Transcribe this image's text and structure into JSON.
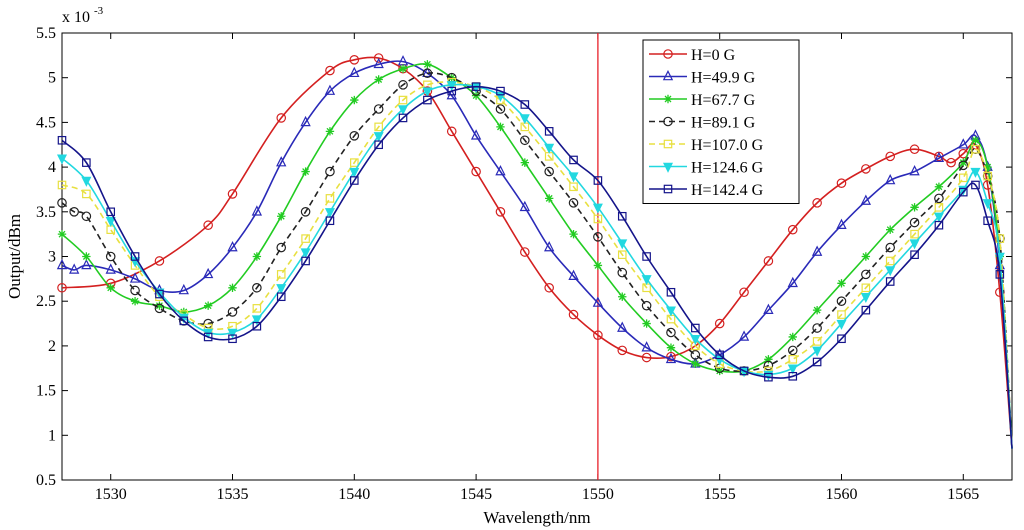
{
  "chart_data": {
    "type": "line",
    "title": "",
    "xlabel": "Wavelength/nm",
    "ylabel": "Output/dBm",
    "y_multiplier_label": "x 10",
    "y_multiplier_exp": "-3",
    "xlim": [
      1528,
      1567
    ],
    "ylim": [
      0.5,
      5.5
    ],
    "xticks": [
      1530,
      1535,
      1540,
      1545,
      1550,
      1555,
      1560,
      1565
    ],
    "yticks": [
      0.5,
      1,
      1.5,
      2,
      2.5,
      3,
      3.5,
      4,
      4.5,
      5,
      5.5
    ],
    "grid": false,
    "legend_position": "top-right",
    "vertical_marker": {
      "x": 1550,
      "color": "#e8202a"
    },
    "series": [
      {
        "name": "H=0 G",
        "color": "#d42020",
        "marker": "circle",
        "dash": "solid",
        "points": [
          [
            1528,
            2.65
          ],
          [
            1530,
            2.7
          ],
          [
            1532,
            2.95
          ],
          [
            1534,
            3.35
          ],
          [
            1535,
            3.7
          ],
          [
            1537,
            4.55
          ],
          [
            1539,
            5.08
          ],
          [
            1540,
            5.2
          ],
          [
            1541,
            5.22
          ],
          [
            1542,
            5.1
          ],
          [
            1543,
            4.85
          ],
          [
            1544,
            4.4
          ],
          [
            1545,
            3.95
          ],
          [
            1546,
            3.5
          ],
          [
            1547,
            3.05
          ],
          [
            1548,
            2.65
          ],
          [
            1549,
            2.35
          ],
          [
            1550,
            2.12
          ],
          [
            1551,
            1.95
          ],
          [
            1552,
            1.87
          ],
          [
            1553,
            1.88
          ],
          [
            1554,
            2.0
          ],
          [
            1555,
            2.25
          ],
          [
            1556,
            2.6
          ],
          [
            1557,
            2.95
          ],
          [
            1558,
            3.3
          ],
          [
            1559,
            3.6
          ],
          [
            1560,
            3.82
          ],
          [
            1561,
            3.98
          ],
          [
            1562,
            4.12
          ],
          [
            1563,
            4.2
          ],
          [
            1564,
            4.12
          ],
          [
            1564.5,
            4.05
          ],
          [
            1565,
            4.15
          ],
          [
            1565.5,
            4.25
          ],
          [
            1566,
            3.8
          ],
          [
            1566.5,
            2.6
          ],
          [
            1567,
            0.85
          ]
        ]
      },
      {
        "name": "H=49.9 G",
        "color": "#2a2ab8",
        "marker": "triangle",
        "dash": "solid",
        "points": [
          [
            1528,
            2.9
          ],
          [
            1528.5,
            2.85
          ],
          [
            1529,
            2.9
          ],
          [
            1530,
            2.85
          ],
          [
            1531,
            2.75
          ],
          [
            1532,
            2.62
          ],
          [
            1533,
            2.62
          ],
          [
            1534,
            2.8
          ],
          [
            1535,
            3.1
          ],
          [
            1536,
            3.5
          ],
          [
            1537,
            4.05
          ],
          [
            1538,
            4.5
          ],
          [
            1539,
            4.85
          ],
          [
            1540,
            5.05
          ],
          [
            1541,
            5.15
          ],
          [
            1542,
            5.18
          ],
          [
            1543,
            5.05
          ],
          [
            1544,
            4.8
          ],
          [
            1545,
            4.35
          ],
          [
            1546,
            3.95
          ],
          [
            1547,
            3.55
          ],
          [
            1548,
            3.1
          ],
          [
            1549,
            2.78
          ],
          [
            1550,
            2.48
          ],
          [
            1551,
            2.2
          ],
          [
            1552,
            1.98
          ],
          [
            1553,
            1.85
          ],
          [
            1554,
            1.8
          ],
          [
            1555,
            1.9
          ],
          [
            1556,
            2.1
          ],
          [
            1557,
            2.4
          ],
          [
            1558,
            2.7
          ],
          [
            1559,
            3.05
          ],
          [
            1560,
            3.35
          ],
          [
            1561,
            3.62
          ],
          [
            1562,
            3.85
          ],
          [
            1563,
            3.95
          ],
          [
            1564,
            4.1
          ],
          [
            1565,
            4.25
          ],
          [
            1565.5,
            4.35
          ],
          [
            1566,
            4.0
          ],
          [
            1566.5,
            2.9
          ],
          [
            1567,
            0.85
          ]
        ]
      },
      {
        "name": "H=67.7 G",
        "color": "#22cc22",
        "marker": "star",
        "dash": "solid",
        "points": [
          [
            1528,
            3.25
          ],
          [
            1529,
            3.0
          ],
          [
            1530,
            2.65
          ],
          [
            1531,
            2.5
          ],
          [
            1532,
            2.45
          ],
          [
            1533,
            2.38
          ],
          [
            1534,
            2.45
          ],
          [
            1535,
            2.65
          ],
          [
            1536,
            3.0
          ],
          [
            1537,
            3.45
          ],
          [
            1538,
            3.95
          ],
          [
            1539,
            4.4
          ],
          [
            1540,
            4.75
          ],
          [
            1541,
            4.98
          ],
          [
            1542,
            5.1
          ],
          [
            1543,
            5.15
          ],
          [
            1544,
            5.0
          ],
          [
            1545,
            4.8
          ],
          [
            1546,
            4.45
          ],
          [
            1547,
            4.05
          ],
          [
            1548,
            3.65
          ],
          [
            1549,
            3.25
          ],
          [
            1550,
            2.9
          ],
          [
            1551,
            2.55
          ],
          [
            1552,
            2.25
          ],
          [
            1553,
            1.98
          ],
          [
            1554,
            1.8
          ],
          [
            1555,
            1.72
          ],
          [
            1556,
            1.72
          ],
          [
            1557,
            1.85
          ],
          [
            1558,
            2.1
          ],
          [
            1559,
            2.4
          ],
          [
            1560,
            2.7
          ],
          [
            1561,
            3.0
          ],
          [
            1562,
            3.3
          ],
          [
            1563,
            3.55
          ],
          [
            1564,
            3.78
          ],
          [
            1565,
            4.05
          ],
          [
            1565.5,
            4.3
          ],
          [
            1566,
            4.0
          ],
          [
            1566.5,
            3.0
          ],
          [
            1567,
            0.85
          ]
        ]
      },
      {
        "name": "H=89.1 G",
        "color": "#222222",
        "marker": "circle",
        "dash": "dashed",
        "points": [
          [
            1528,
            3.6
          ],
          [
            1528.5,
            3.5
          ],
          [
            1529,
            3.45
          ],
          [
            1530,
            3.0
          ],
          [
            1531,
            2.62
          ],
          [
            1532,
            2.42
          ],
          [
            1533,
            2.28
          ],
          [
            1534,
            2.25
          ],
          [
            1535,
            2.38
          ],
          [
            1536,
            2.65
          ],
          [
            1537,
            3.1
          ],
          [
            1538,
            3.5
          ],
          [
            1539,
            3.95
          ],
          [
            1540,
            4.35
          ],
          [
            1541,
            4.65
          ],
          [
            1542,
            4.92
          ],
          [
            1543,
            5.05
          ],
          [
            1544,
            5.0
          ],
          [
            1545,
            4.85
          ],
          [
            1546,
            4.65
          ],
          [
            1547,
            4.3
          ],
          [
            1548,
            3.95
          ],
          [
            1549,
            3.6
          ],
          [
            1550,
            3.22
          ],
          [
            1551,
            2.82
          ],
          [
            1552,
            2.45
          ],
          [
            1553,
            2.15
          ],
          [
            1554,
            1.9
          ],
          [
            1555,
            1.75
          ],
          [
            1556,
            1.72
          ],
          [
            1557,
            1.78
          ],
          [
            1558,
            1.95
          ],
          [
            1559,
            2.2
          ],
          [
            1560,
            2.5
          ],
          [
            1561,
            2.8
          ],
          [
            1562,
            3.1
          ],
          [
            1563,
            3.38
          ],
          [
            1564,
            3.65
          ],
          [
            1565,
            4.02
          ],
          [
            1565.5,
            4.2
          ],
          [
            1566,
            3.9
          ],
          [
            1566.5,
            3.2
          ],
          [
            1567,
            0.85
          ]
        ]
      },
      {
        "name": "H=107.0 G",
        "color": "#e8e040",
        "marker": "square",
        "dash": "dashed",
        "points": [
          [
            1528,
            3.8
          ],
          [
            1529,
            3.7
          ],
          [
            1530,
            3.3
          ],
          [
            1531,
            2.9
          ],
          [
            1532,
            2.55
          ],
          [
            1533,
            2.35
          ],
          [
            1534,
            2.2
          ],
          [
            1535,
            2.22
          ],
          [
            1536,
            2.42
          ],
          [
            1537,
            2.8
          ],
          [
            1538,
            3.2
          ],
          [
            1539,
            3.65
          ],
          [
            1540,
            4.05
          ],
          [
            1541,
            4.45
          ],
          [
            1542,
            4.75
          ],
          [
            1543,
            4.92
          ],
          [
            1544,
            4.95
          ],
          [
            1545,
            4.9
          ],
          [
            1546,
            4.75
          ],
          [
            1547,
            4.45
          ],
          [
            1548,
            4.12
          ],
          [
            1549,
            3.78
          ],
          [
            1550,
            3.42
          ],
          [
            1551,
            3.02
          ],
          [
            1552,
            2.65
          ],
          [
            1553,
            2.3
          ],
          [
            1554,
            2.0
          ],
          [
            1555,
            1.8
          ],
          [
            1556,
            1.72
          ],
          [
            1557,
            1.72
          ],
          [
            1558,
            1.85
          ],
          [
            1559,
            2.05
          ],
          [
            1560,
            2.35
          ],
          [
            1561,
            2.65
          ],
          [
            1562,
            2.95
          ],
          [
            1563,
            3.25
          ],
          [
            1564,
            3.55
          ],
          [
            1565,
            3.88
          ],
          [
            1565.5,
            4.2
          ],
          [
            1566,
            3.9
          ],
          [
            1566.5,
            3.2
          ],
          [
            1567,
            0.85
          ]
        ]
      },
      {
        "name": "H=124.6 G",
        "color": "#22d8e0",
        "marker": "triangle-down",
        "dash": "solid",
        "points": [
          [
            1528,
            4.1
          ],
          [
            1529,
            3.85
          ],
          [
            1530,
            3.4
          ],
          [
            1531,
            2.95
          ],
          [
            1532,
            2.6
          ],
          [
            1533,
            2.32
          ],
          [
            1534,
            2.15
          ],
          [
            1535,
            2.15
          ],
          [
            1536,
            2.3
          ],
          [
            1537,
            2.65
          ],
          [
            1538,
            3.05
          ],
          [
            1539,
            3.5
          ],
          [
            1540,
            3.95
          ],
          [
            1541,
            4.35
          ],
          [
            1542,
            4.65
          ],
          [
            1543,
            4.85
          ],
          [
            1544,
            4.92
          ],
          [
            1545,
            4.9
          ],
          [
            1546,
            4.8
          ],
          [
            1547,
            4.55
          ],
          [
            1548,
            4.22
          ],
          [
            1549,
            3.9
          ],
          [
            1550,
            3.55
          ],
          [
            1551,
            3.15
          ],
          [
            1552,
            2.75
          ],
          [
            1553,
            2.4
          ],
          [
            1554,
            2.08
          ],
          [
            1555,
            1.85
          ],
          [
            1556,
            1.72
          ],
          [
            1557,
            1.68
          ],
          [
            1558,
            1.75
          ],
          [
            1559,
            1.95
          ],
          [
            1560,
            2.25
          ],
          [
            1561,
            2.55
          ],
          [
            1562,
            2.85
          ],
          [
            1563,
            3.15
          ],
          [
            1564,
            3.45
          ],
          [
            1565,
            3.75
          ],
          [
            1565.5,
            3.95
          ],
          [
            1566,
            3.6
          ],
          [
            1566.5,
            3.0
          ],
          [
            1567,
            0.85
          ]
        ]
      },
      {
        "name": "H=142.4 G",
        "color": "#14148a",
        "marker": "square",
        "dash": "solid",
        "points": [
          [
            1528,
            4.3
          ],
          [
            1529,
            4.05
          ],
          [
            1530,
            3.5
          ],
          [
            1531,
            3.0
          ],
          [
            1532,
            2.58
          ],
          [
            1533,
            2.28
          ],
          [
            1534,
            2.1
          ],
          [
            1535,
            2.08
          ],
          [
            1536,
            2.22
          ],
          [
            1537,
            2.55
          ],
          [
            1538,
            2.95
          ],
          [
            1539,
            3.4
          ],
          [
            1540,
            3.85
          ],
          [
            1541,
            4.25
          ],
          [
            1542,
            4.55
          ],
          [
            1543,
            4.75
          ],
          [
            1544,
            4.85
          ],
          [
            1545,
            4.9
          ],
          [
            1546,
            4.85
          ],
          [
            1547,
            4.7
          ],
          [
            1548,
            4.4
          ],
          [
            1549,
            4.08
          ],
          [
            1550,
            3.85
          ],
          [
            1551,
            3.45
          ],
          [
            1552,
            3.0
          ],
          [
            1553,
            2.6
          ],
          [
            1554,
            2.2
          ],
          [
            1555,
            1.9
          ],
          [
            1556,
            1.72
          ],
          [
            1557,
            1.65
          ],
          [
            1558,
            1.66
          ],
          [
            1559,
            1.82
          ],
          [
            1560,
            2.08
          ],
          [
            1561,
            2.4
          ],
          [
            1562,
            2.72
          ],
          [
            1563,
            3.02
          ],
          [
            1564,
            3.35
          ],
          [
            1565,
            3.72
          ],
          [
            1565.5,
            3.8
          ],
          [
            1566,
            3.4
          ],
          [
            1566.5,
            2.8
          ],
          [
            1567,
            0.85
          ]
        ]
      }
    ]
  }
}
